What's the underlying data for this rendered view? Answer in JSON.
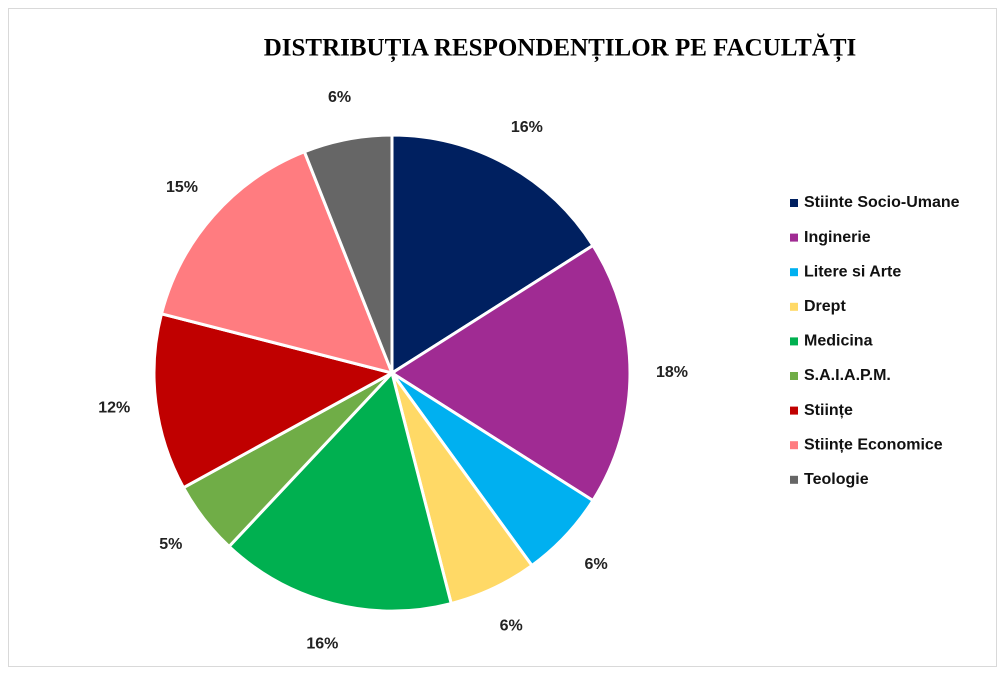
{
  "chart_data": {
    "type": "pie",
    "title": "DISTRIBUȚIA RESPONDENȚILOR PE FACULTĂȚI",
    "categories": [
      "Stiinte Socio-Umane",
      "Inginerie",
      "Litere si Arte",
      "Drept",
      "Medicina",
      "S.A.I.A.P.M.",
      "Stiințe",
      "Stiințe Economice",
      "Teologie"
    ],
    "values": [
      16,
      18,
      6,
      6,
      16,
      5,
      12,
      15,
      6
    ],
    "value_labels": [
      "16%",
      "18%",
      "6%",
      "6%",
      "16%",
      "5%",
      "12%",
      "15%",
      "6%"
    ],
    "colors": [
      "#002060",
      "#a02b93",
      "#00b0f0",
      "#ffd966",
      "#00b050",
      "#70ad47",
      "#c00000",
      "#ff7c80",
      "#666666"
    ],
    "legend": "right"
  }
}
